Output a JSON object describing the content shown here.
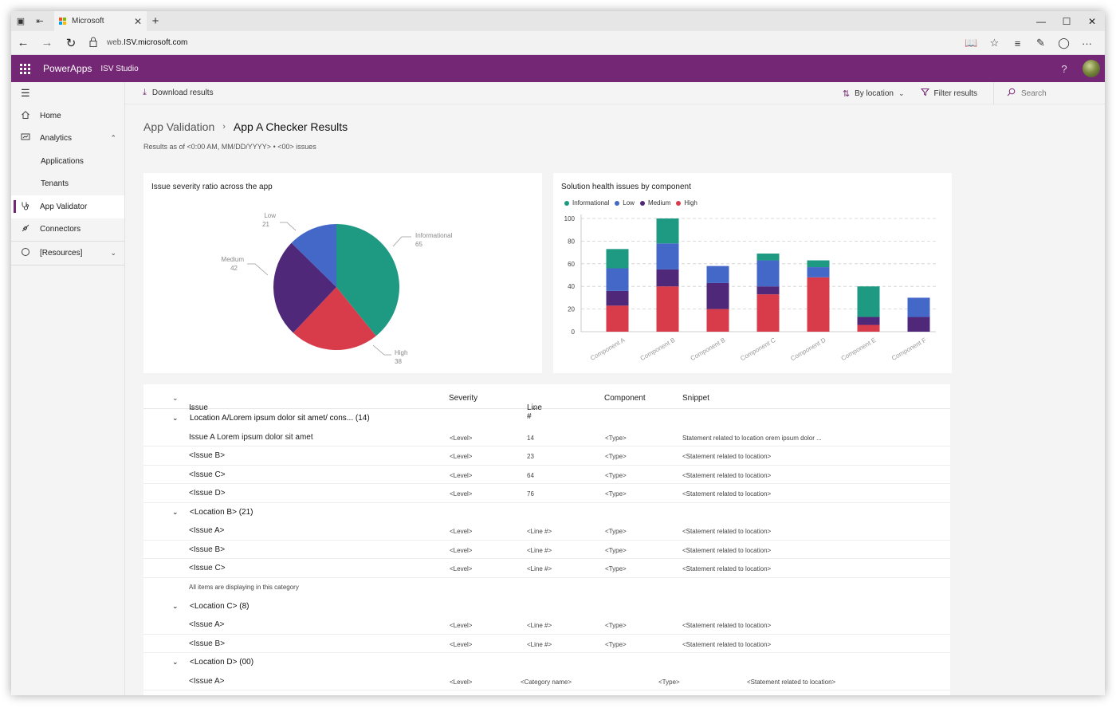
{
  "browser": {
    "tab_title": "Microsoft",
    "url_prefix": "web.",
    "url_domain": "ISV.microsoft.com"
  },
  "suite": {
    "brand": "PowerApps",
    "product": "ISV Studio",
    "help": "?"
  },
  "sidenav": {
    "items": [
      {
        "label": "Home",
        "icon": "home-icon"
      },
      {
        "label": "Analytics",
        "icon": "analytics-icon"
      },
      {
        "label": "Applications"
      },
      {
        "label": "Tenants"
      },
      {
        "label": "App Validator",
        "icon": "stethoscope-icon"
      },
      {
        "label": "Connectors",
        "icon": "plug-icon"
      },
      {
        "label": "[Resources]",
        "icon": "circle-icon"
      }
    ]
  },
  "cmdbar": {
    "download": "Download results",
    "sort": "By location",
    "filter": "Filter results",
    "search_placeholder": "Search"
  },
  "header": {
    "crumb_parent": "App Validation",
    "crumb_current": "App A Checker Results",
    "subtitle": "Results as of <0:00 AM, MM/DD/YYYY>  •  <00> issues"
  },
  "pie": {
    "title": "Issue severity ratio across the app",
    "labels": [
      {
        "name": "Low",
        "value": "21"
      },
      {
        "name": "Informational",
        "value": "65"
      },
      {
        "name": "Medium",
        "value": "42"
      },
      {
        "name": "High",
        "value": "38"
      }
    ]
  },
  "bar": {
    "title": "Solution health issues by component",
    "legend": [
      "Informational",
      "Low",
      "Medium",
      "High"
    ]
  },
  "colors": {
    "informational": "#1f9a82",
    "low": "#4468c8",
    "medium": "#50287a",
    "high": "#d83b4a",
    "accent": "#742774"
  },
  "chart_data": [
    {
      "type": "pie",
      "title": "Issue severity ratio across the app",
      "categories": [
        "Informational",
        "High",
        "Medium",
        "Low"
      ],
      "values": [
        65,
        38,
        42,
        21
      ]
    },
    {
      "type": "bar",
      "stacked": true,
      "title": "Solution health issues by component",
      "categories": [
        "Component A",
        "Component B",
        "Component B",
        "Component C",
        "Component D",
        "Component E",
        "Component F"
      ],
      "series": [
        {
          "name": "High",
          "values": [
            23,
            40,
            20,
            33,
            48,
            6,
            0
          ]
        },
        {
          "name": "Medium",
          "values": [
            13,
            15,
            23,
            7,
            0,
            7,
            13
          ]
        },
        {
          "name": "Low",
          "values": [
            20,
            23,
            15,
            23,
            9,
            0,
            17
          ]
        },
        {
          "name": "Informational",
          "values": [
            17,
            22,
            0,
            6,
            6,
            27,
            0
          ]
        }
      ],
      "ylim": [
        0,
        100
      ],
      "yticks": [
        "100",
        "80",
        "60",
        "40",
        "20",
        "0"
      ],
      "grid": true,
      "legend": "top-left"
    }
  ],
  "table": {
    "headers": {
      "issue": "Issue",
      "severity": "Severity",
      "line": "Line #",
      "component": "Component",
      "snippet": "Snippet"
    },
    "groups": [
      {
        "title": "Location A/Lorem ipsum dolor sit amet/ cons... (14)",
        "rows": [
          {
            "issue": "Issue A Lorem ipsum dolor sit amet",
            "severity": "<Level>",
            "line": "14",
            "component": "<Type>",
            "snippet": "Statement related to location orem ipsum dolor  ..."
          },
          {
            "issue": "<Issue B>",
            "severity": "<Level>",
            "line": "23",
            "component": "<Type>",
            "snippet": "<Statement related to location>"
          },
          {
            "issue": "<Issue C>",
            "severity": "<Level>",
            "line": "64",
            "component": "<Type>",
            "snippet": "<Statement related to location>"
          },
          {
            "issue": "<Issue D>",
            "severity": "<Level>",
            "line": "76",
            "component": "<Type>",
            "snippet": "<Statement related to location>"
          }
        ]
      },
      {
        "title": "<Location B> (21)",
        "rows": [
          {
            "issue": "<Issue A>",
            "severity": "<Level>",
            "line": "<Line #>",
            "component": "<Type>",
            "snippet": "<Statement related to location>"
          },
          {
            "issue": "<Issue B>",
            "severity": "<Level>",
            "line": "<Line #>",
            "component": "<Type>",
            "snippet": "<Statement related to location>"
          },
          {
            "issue": "<Issue C>",
            "severity": "<Level>",
            "line": "<Line #>",
            "component": "<Type>",
            "snippet": "<Statement related to location>"
          }
        ],
        "note": "All items are displaying in this category"
      },
      {
        "title": "<Location C> (8)",
        "rows": [
          {
            "issue": "<Issue A>",
            "severity": "<Level>",
            "line": "<Line #>",
            "component": "<Type>",
            "snippet": "<Statement related to location>"
          },
          {
            "issue": "<Issue B>",
            "severity": "<Level>",
            "line": "<Line #>",
            "component": "<Type>",
            "snippet": "<Statement related to location>"
          }
        ]
      },
      {
        "title": "<Location D> (00)",
        "rows": [
          {
            "issue": "<Issue A>",
            "severity": "<Level>",
            "line": "<Category name>",
            "component": "<Type>",
            "snippet": "<Statement related to location>"
          }
        ]
      }
    ]
  }
}
